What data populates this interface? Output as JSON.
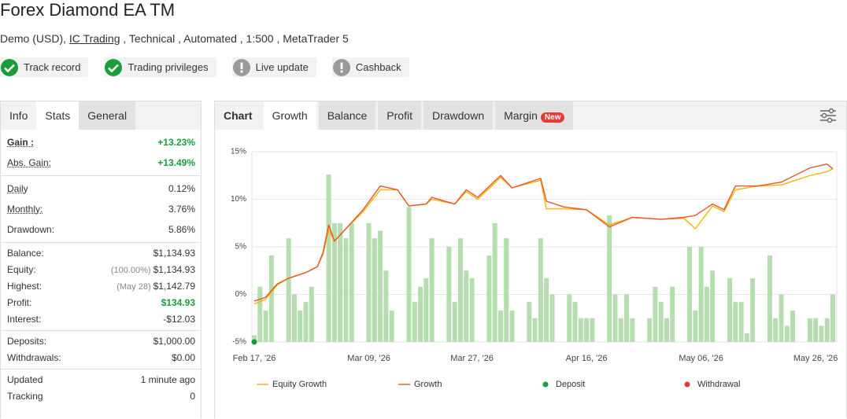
{
  "header": {
    "title": "Forex Diamond EA TM",
    "subtitle_prefix": "Demo (USD),",
    "broker": "IC Trading",
    "subtitle_suffix": ", Technical , Automated , 1:500 , MetaTrader 5"
  },
  "badges": [
    "Track record",
    "Trading privileges",
    "Live update",
    "Cashback"
  ],
  "left_tabs": [
    "Info",
    "Stats",
    "General"
  ],
  "stats": [
    [
      {
        "label": "Gain :",
        "value": "+13.23%",
        "color": "#1a9e3a"
      },
      {
        "label": "Abs. Gain:",
        "value": "+13.49%",
        "color": "#1a9e3a"
      }
    ],
    [
      {
        "label": "Daily",
        "value": "0.12%"
      },
      {
        "label": "Monthly:",
        "value": "3.76%"
      },
      {
        "label": "Drawdown:",
        "value": "5.86%"
      }
    ],
    [
      {
        "label": "Balance:",
        "value": "$1,134.93"
      },
      {
        "label": "Equity:",
        "note": "(100.00%)",
        "value": "$1,134.93"
      },
      {
        "label": "Highest:",
        "note": "(May 28)",
        "value": "$1,142.79"
      },
      {
        "label": "Profit:",
        "value": "$134.93",
        "color": "#1a9e3a"
      },
      {
        "label": "Interest:",
        "value": "-$12.03"
      }
    ],
    [
      {
        "label": "Deposits:",
        "value": "$1,000.00"
      },
      {
        "label": "Withdrawals:",
        "value": "$0.00"
      }
    ],
    [
      {
        "label": "Updated",
        "value": "1 minute ago"
      },
      {
        "label": "Tracking",
        "value": "0"
      }
    ]
  ],
  "chart_tabs": {
    "label": "Chart",
    "tabs": [
      "Growth",
      "Balance",
      "Profit",
      "Drawdown",
      "Margin"
    ],
    "new_badge": "New"
  },
  "chart_data": {
    "type": "line",
    "x": [
      "2026-02-17",
      "2026-02-19",
      "2026-02-21",
      "2026-02-23",
      "2026-02-26",
      "2026-02-28",
      "2026-03-01",
      "2026-03-02",
      "2026-03-03",
      "2026-03-05",
      "2026-03-08",
      "2026-03-11",
      "2026-03-14",
      "2026-03-16",
      "2026-03-19",
      "2026-03-20",
      "2026-03-24",
      "2026-03-26",
      "2026-03-28",
      "2026-04-01",
      "2026-04-03",
      "2026-04-08",
      "2026-04-09",
      "2026-04-12",
      "2026-04-16",
      "2026-04-20",
      "2026-04-24",
      "2026-04-29",
      "2026-05-03",
      "2026-05-05",
      "2026-05-08",
      "2026-05-10",
      "2026-05-12",
      "2026-05-16",
      "2026-05-20",
      "2026-05-25",
      "2026-05-28",
      "2026-05-29"
    ],
    "series": [
      {
        "name": "Equity Growth",
        "color": "#f5b400",
        "values": [
          -1.0,
          -0.5,
          1.0,
          1.7,
          2.3,
          2.9,
          4.2,
          6.8,
          5.6,
          6.9,
          8.7,
          11.0,
          11.0,
          9.3,
          9.5,
          10.0,
          9.5,
          10.8,
          10.0,
          12.3,
          11.2,
          12.0,
          9.0,
          9.0,
          8.9,
          7.3,
          8.1,
          7.9,
          8.0,
          6.9,
          9.3,
          8.7,
          11.0,
          11.4,
          11.5,
          12.5,
          12.9,
          13.2
        ]
      },
      {
        "name": "Growth",
        "color": "#e8542b",
        "values": [
          -0.7,
          -0.3,
          1.1,
          1.7,
          2.3,
          2.9,
          4.4,
          7.3,
          5.6,
          6.9,
          8.9,
          11.4,
          11.0,
          9.3,
          9.5,
          10.2,
          9.5,
          11.0,
          10.2,
          12.5,
          11.2,
          12.2,
          9.8,
          9.2,
          8.9,
          7.1,
          8.1,
          7.9,
          8.1,
          8.3,
          9.5,
          8.9,
          11.4,
          11.4,
          11.8,
          13.3,
          13.7,
          13.2
        ]
      }
    ],
    "bars": {
      "color": "#b5ddb0",
      "x": [
        "2026-02-17",
        "2026-02-18",
        "2026-02-19",
        "2026-02-20",
        "2026-02-23",
        "2026-02-24",
        "2026-02-25",
        "2026-02-26",
        "2026-02-27",
        "2026-03-02",
        "2026-03-03",
        "2026-03-04",
        "2026-03-05",
        "2026-03-06",
        "2026-03-09",
        "2026-03-10",
        "2026-03-11",
        "2026-03-12",
        "2026-03-13",
        "2026-03-16",
        "2026-03-17",
        "2026-03-18",
        "2026-03-19",
        "2026-03-20",
        "2026-03-23",
        "2026-03-24",
        "2026-03-25",
        "2026-03-26",
        "2026-03-27",
        "2026-03-30",
        "2026-03-31",
        "2026-04-01",
        "2026-04-02",
        "2026-04-03",
        "2026-04-06",
        "2026-04-07",
        "2026-04-08",
        "2026-04-09",
        "2026-04-10",
        "2026-04-13",
        "2026-04-14",
        "2026-04-15",
        "2026-04-16",
        "2026-04-17",
        "2026-04-20",
        "2026-04-21",
        "2026-04-22",
        "2026-04-23",
        "2026-04-24",
        "2026-04-27",
        "2026-04-28",
        "2026-04-29",
        "2026-04-30",
        "2026-05-01",
        "2026-05-04",
        "2026-05-05",
        "2026-05-06",
        "2026-05-07",
        "2026-05-08",
        "2026-05-11",
        "2026-05-12",
        "2026-05-13",
        "2026-05-14",
        "2026-05-15",
        "2026-05-18",
        "2026-05-19",
        "2026-05-20",
        "2026-05-21",
        "2026-05-22",
        "2026-05-25",
        "2026-05-26",
        "2026-05-27",
        "2026-05-28",
        "2026-05-29"
      ],
      "values": [
        -4.3,
        0.8,
        -1.7,
        4.1,
        5.9,
        0,
        -1.7,
        -0.8,
        0.8,
        12.6,
        7.5,
        7.5,
        5.9,
        7.5,
        7.5,
        5.9,
        6.7,
        2.5,
        -1.7,
        9.2,
        -0.8,
        0.8,
        1.7,
        5.9,
        5.0,
        -0.8,
        5.9,
        2.5,
        1.7,
        4.1,
        7.5,
        -1.7,
        5.9,
        -1.7,
        -0.8,
        -2.5,
        5.9,
        1.7,
        0,
        0,
        -0.8,
        -2.5,
        -2.5,
        -2.5,
        8.3,
        0,
        -2.5,
        0,
        -2.5,
        -2.5,
        0.8,
        -0.8,
        -2.5,
        0.8,
        5.0,
        -1.7,
        5.0,
        0.8,
        2.5,
        1.7,
        -0.8,
        -0.8,
        -4.1,
        1.7,
        4.1,
        -2.5,
        0,
        -3.3,
        -1.7,
        -2.5,
        -2.5,
        -3.3,
        -2.5,
        0
      ]
    },
    "markers": [
      {
        "name": "Deposit",
        "color": "#1a9e3a",
        "x": [
          "2026-02-17"
        ],
        "values": [
          -5
        ]
      },
      {
        "name": "Withdrawal",
        "color": "#e53935",
        "x": [],
        "values": []
      }
    ],
    "xlim": [
      "2026-02-17",
      "2026-05-29"
    ],
    "xticks": [
      {
        "value": "2026-02-17",
        "label": "Feb 17, '26"
      },
      {
        "value": "2026-03-09",
        "label": "Mar 09, '26"
      },
      {
        "value": "2026-03-27",
        "label": "Mar 27, '26"
      },
      {
        "value": "2026-04-16",
        "label": "Apr 16, '26"
      },
      {
        "value": "2026-05-06",
        "label": "May 06, '26"
      },
      {
        "value": "2026-05-26",
        "label": "May 26, '26"
      }
    ],
    "ylim": [
      -5,
      15
    ],
    "yticks": [
      {
        "value": -5,
        "label": "-5%"
      },
      {
        "value": 0,
        "label": "0%"
      },
      {
        "value": 5,
        "label": "5%"
      },
      {
        "value": 10,
        "label": "10%"
      },
      {
        "value": 15,
        "label": "15%"
      }
    ],
    "grid": true
  }
}
